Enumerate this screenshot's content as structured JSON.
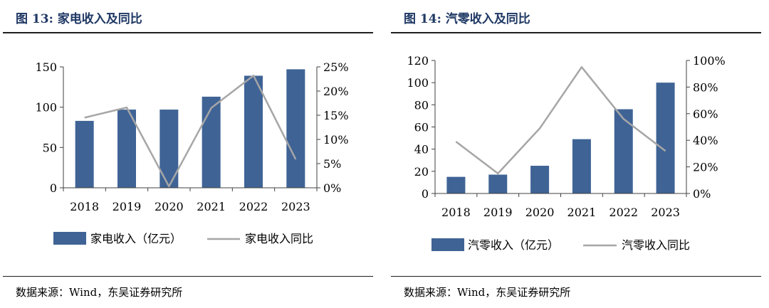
{
  "panels": [
    {
      "title": "图 13:  家电收入及同比",
      "source": "数据来源：Wind，东吴证券研究所",
      "chart_data": {
        "type": "bar+line",
        "categories": [
          "2018",
          "2019",
          "2020",
          "2021",
          "2022",
          "2023"
        ],
        "series": [
          {
            "name": "家电收入（亿元）",
            "type": "bar",
            "axis": "left",
            "values": [
              83,
              97,
              97,
              113,
              139,
              147
            ]
          },
          {
            "name": "家电收入同比",
            "type": "line",
            "axis": "right",
            "values": [
              14.5,
              16.6,
              0.3,
              16.5,
              23.2,
              5.9
            ]
          }
        ],
        "ylim_left": [
          0,
          150
        ],
        "yticks_left": [
          "0",
          "50",
          "100",
          "150"
        ],
        "yticks_left_values": [
          0,
          50,
          100,
          150
        ],
        "ylim_right": [
          0,
          25
        ],
        "yticks_right": [
          "0%",
          "5%",
          "10%",
          "15%",
          "20%",
          "25%"
        ],
        "yticks_right_values": [
          0,
          5,
          10,
          15,
          20,
          25
        ],
        "legend_position": "bottom",
        "bar_color": "#3f6395",
        "line_color": "#a6a6a6"
      }
    },
    {
      "title": "图 14:  汽零收入及同比",
      "source": "数据来源：Wind，东吴证券研究所",
      "chart_data": {
        "type": "bar+line",
        "categories": [
          "2018",
          "2019",
          "2020",
          "2021",
          "2022",
          "2023"
        ],
        "series": [
          {
            "name": "汽零收入（亿元）",
            "type": "bar",
            "axis": "left",
            "values": [
              15,
              17,
              25,
              49,
              76,
              100
            ]
          },
          {
            "name": "汽零收入同比",
            "type": "line",
            "axis": "right",
            "values": [
              39,
              15,
              49,
              95,
              56,
              32
            ]
          }
        ],
        "ylim_left": [
          0,
          120
        ],
        "yticks_left": [
          "0",
          "20",
          "40",
          "60",
          "80",
          "100",
          "120"
        ],
        "yticks_left_values": [
          0,
          20,
          40,
          60,
          80,
          100,
          120
        ],
        "ylim_right": [
          0,
          100
        ],
        "yticks_right": [
          "0%",
          "20%",
          "40%",
          "60%",
          "80%",
          "100%"
        ],
        "yticks_right_values": [
          0,
          20,
          40,
          60,
          80,
          100
        ],
        "legend_position": "bottom",
        "bar_color": "#3f6395",
        "line_color": "#a6a6a6"
      }
    }
  ]
}
